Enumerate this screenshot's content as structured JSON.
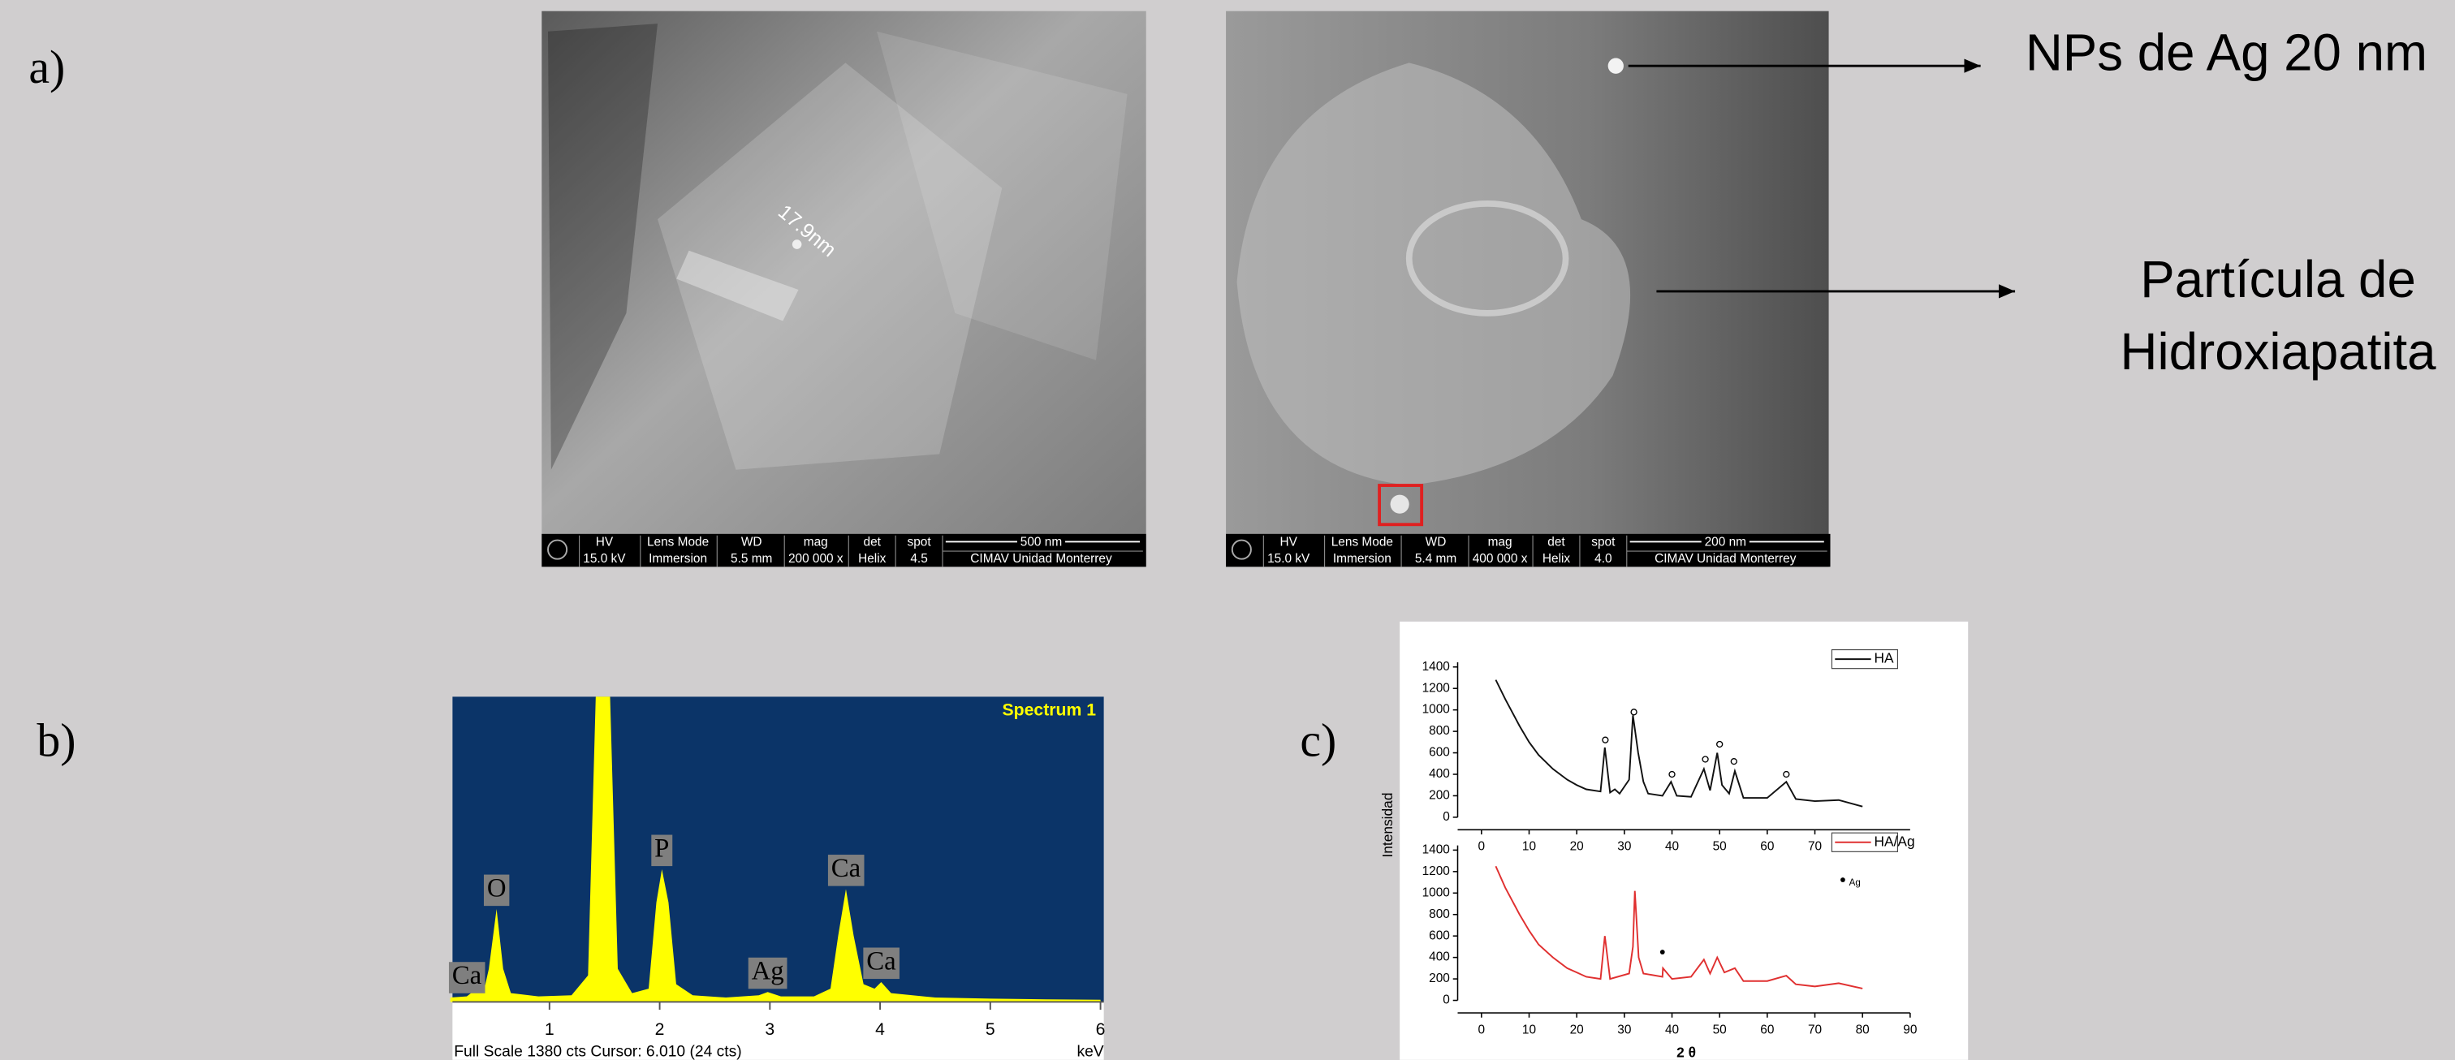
{
  "labels": {
    "a": "a)",
    "b": "b)",
    "c": "c)"
  },
  "sem_images": [
    {
      "scale_label": "17.9nm",
      "info_bar": [
        {
          "header": "HV",
          "value": "15.0 kV"
        },
        {
          "header": "Lens Mode",
          "value": "Immersion"
        },
        {
          "header": "WD",
          "value": "5.5 mm"
        },
        {
          "header": "mag",
          "value": "200 000 x"
        },
        {
          "header": "det",
          "value": "Helix"
        },
        {
          "header": "spot",
          "value": "4.5"
        },
        {
          "header": "500 nm",
          "value": "CIMAV Unidad Monterrey"
        }
      ]
    },
    {
      "info_bar": [
        {
          "header": "HV",
          "value": "15.0 kV"
        },
        {
          "header": "Lens Mode",
          "value": "Immersion"
        },
        {
          "header": "WD",
          "value": "5.4 mm"
        },
        {
          "header": "mag",
          "value": "400 000 x"
        },
        {
          "header": "det",
          "value": "Helix"
        },
        {
          "header": "spot",
          "value": "4.0"
        },
        {
          "header": "200 nm",
          "value": "CIMAV Unidad Monterrey"
        }
      ],
      "annotations": [
        {
          "lines": [
            "NPs de Ag 20 nm"
          ]
        },
        {
          "lines": [
            "Partícula de",
            "Hidroxiapatita"
          ]
        }
      ]
    }
  ],
  "chart_data": [
    {
      "type": "area",
      "title": "Spectrum 1",
      "color": "#ffff00",
      "x": [
        0.1,
        0.25,
        0.34,
        0.4,
        0.45,
        0.52,
        0.58,
        0.65,
        0.9,
        1.2,
        1.35,
        1.42,
        1.55,
        1.62,
        1.75,
        1.9,
        1.97,
        2.02,
        2.08,
        2.15,
        2.3,
        2.6,
        2.9,
        2.98,
        3.1,
        3.4,
        3.55,
        3.62,
        3.69,
        3.76,
        3.85,
        3.95,
        4.01,
        4.1,
        4.5,
        5.0,
        5.5,
        6.0
      ],
      "values": [
        20,
        25,
        60,
        40,
        150,
        420,
        150,
        40,
        25,
        30,
        120,
        1380,
        1380,
        150,
        40,
        60,
        450,
        600,
        450,
        80,
        30,
        20,
        30,
        45,
        25,
        25,
        60,
        300,
        510,
        300,
        80,
        60,
        90,
        40,
        20,
        15,
        12,
        10
      ],
      "xlim": [
        0.12,
        6.03
      ],
      "ylim": [
        0,
        1380
      ],
      "xticks": [
        1,
        2,
        3,
        4,
        5,
        6
      ],
      "xlabel": "keV",
      "footer": "Full Scale 1380 cts Cursor: 6.010  (24 cts)",
      "peak_labels": [
        {
          "label": "Ca",
          "x": 0.25
        },
        {
          "label": "O",
          "x": 0.52
        },
        {
          "label": "P",
          "x": 2.02
        },
        {
          "label": "Ag",
          "x": 2.98
        },
        {
          "label": "Ca",
          "x": 3.69
        },
        {
          "label": "Ca",
          "x": 4.01
        }
      ]
    },
    {
      "type": "line",
      "ylabel": "Intensidad",
      "xlim": [
        -5,
        90
      ],
      "ylim": [
        0,
        1400
      ],
      "xticks": [
        0,
        10,
        20,
        30,
        40,
        50,
        60,
        70
      ],
      "yticks": [
        0,
        200,
        400,
        600,
        800,
        1000,
        1200,
        1400
      ],
      "series": [
        {
          "name": "HA",
          "color": "#111111",
          "x": [
            3,
            5,
            8,
            10,
            12,
            15,
            18,
            20,
            22,
            25,
            25.9,
            27,
            28,
            29,
            31,
            31.8,
            32.9,
            34,
            35,
            38,
            39.8,
            41,
            44,
            46.7,
            48,
            49.5,
            50.5,
            52,
            53.2,
            55,
            60,
            64,
            66,
            70,
            75,
            80
          ],
          "values": [
            1280,
            1100,
            850,
            700,
            580,
            450,
            350,
            300,
            260,
            240,
            650,
            230,
            260,
            220,
            350,
            950,
            600,
            330,
            220,
            200,
            330,
            200,
            190,
            450,
            250,
            600,
            300,
            220,
            430,
            180,
            180,
            330,
            170,
            150,
            160,
            100
          ]
        }
      ],
      "peak_markers": {
        "x": [
          26,
          32,
          40,
          47,
          50,
          53,
          64
        ],
        "y": [
          720,
          980,
          400,
          540,
          680,
          520,
          400
        ]
      }
    },
    {
      "type": "line",
      "xlabel": "2 θ",
      "ag_legend": "Ag",
      "xlim": [
        -5,
        90
      ],
      "ylim": [
        0,
        1400
      ],
      "xticks": [
        0,
        10,
        20,
        30,
        40,
        50,
        60,
        70,
        80,
        90
      ],
      "yticks": [
        0,
        200,
        400,
        600,
        800,
        1000,
        1200,
        1400
      ],
      "series": [
        {
          "name": "HA/Ag",
          "color": "#e03030",
          "x": [
            3,
            5,
            8,
            10,
            12,
            15,
            18,
            20,
            22,
            25,
            25.9,
            27,
            31,
            31.8,
            32.2,
            33,
            34,
            38,
            38.1,
            40,
            44,
            46.7,
            48,
            49.5,
            51,
            53.2,
            55,
            60,
            64,
            66,
            70,
            75,
            80
          ],
          "values": [
            1250,
            1050,
            800,
            650,
            520,
            400,
            300,
            260,
            220,
            200,
            600,
            200,
            250,
            500,
            1020,
            400,
            250,
            220,
            300,
            200,
            220,
            380,
            250,
            400,
            260,
            300,
            180,
            180,
            230,
            150,
            130,
            160,
            110
          ]
        }
      ],
      "ag_marker": {
        "x": 38,
        "y": 450
      }
    }
  ]
}
